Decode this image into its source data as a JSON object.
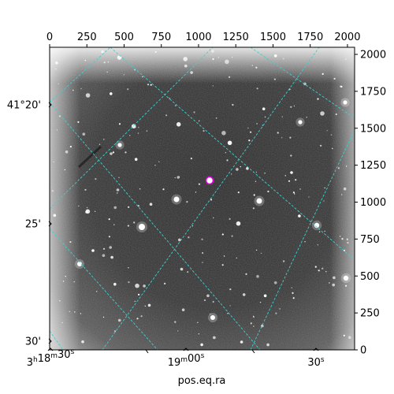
{
  "plot": {
    "xlabel": "pos.eq.ra",
    "pixel_x_ticks": [
      "0",
      "250",
      "500",
      "750",
      "1000",
      "1250",
      "1500",
      "1750",
      "2000"
    ],
    "pixel_y_ticks": [
      "0",
      "250",
      "500",
      "750",
      "1000",
      "1250",
      "1500",
      "1750",
      "2000"
    ],
    "dec_ticks": [
      "41°20'",
      "25'",
      "30'"
    ],
    "ra_ticks": [
      {
        "h": "3",
        "hsup": "h",
        "m": "18",
        "msup": "m",
        "s": "30",
        "ssup": "s"
      },
      {
        "h": "",
        "hsup": "",
        "m": "19",
        "msup": "m",
        "s": "00",
        "ssup": "s"
      },
      {
        "h": "",
        "hsup": "",
        "m": "",
        "msup": "",
        "s": "30",
        "ssup": "s"
      }
    ],
    "grid_color": "#3fd0d0",
    "marker_color": "#e000e0",
    "image": "grayscale astronomical star field with celestial coordinate grid and one circled target"
  }
}
